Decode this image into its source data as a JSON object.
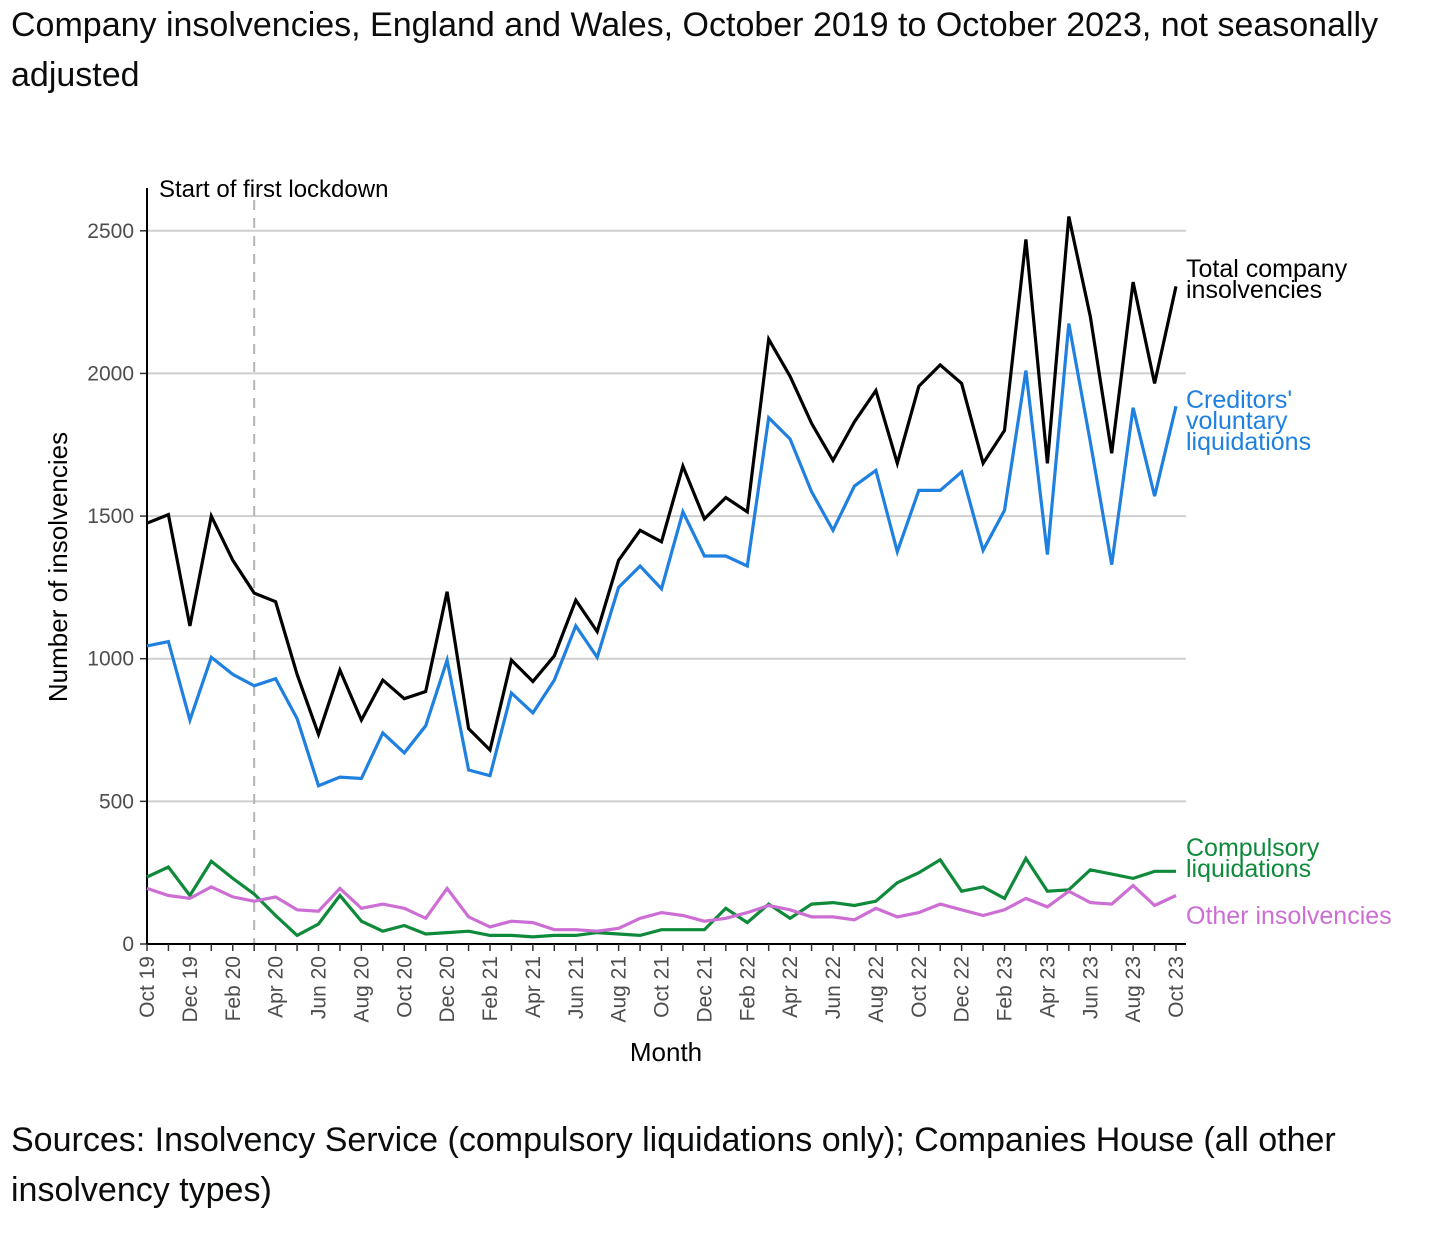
{
  "chart_data": {
    "type": "line",
    "title": "Company insolvencies, England and Wales, October 2019 to October 2023, not seasonally adjusted",
    "xlabel": "Month",
    "ylabel": "Number of insolvencies",
    "ylim": [
      0,
      2650
    ],
    "yticks": [
      0,
      500,
      1000,
      1500,
      2000,
      2500
    ],
    "grid": "horizontal",
    "legend": "direct labels at right end of lines",
    "x": [
      "Oct 19",
      "Nov 19",
      "Dec 19",
      "Jan 20",
      "Feb 20",
      "Mar 20",
      "Apr 20",
      "May 20",
      "Jun 20",
      "Jul 20",
      "Aug 20",
      "Sep 20",
      "Oct 20",
      "Nov 20",
      "Dec 20",
      "Jan 21",
      "Feb 21",
      "Mar 21",
      "Apr 21",
      "May 21",
      "Jun 21",
      "Jul 21",
      "Aug 21",
      "Sep 21",
      "Oct 21",
      "Nov 21",
      "Dec 21",
      "Jan 22",
      "Feb 22",
      "Mar 22",
      "Apr 22",
      "May 22",
      "Jun 22",
      "Jul 22",
      "Aug 22",
      "Sep 22",
      "Oct 22",
      "Nov 22",
      "Dec 22",
      "Jan 23",
      "Feb 23",
      "Mar 23",
      "Apr 23",
      "May 23",
      "Jun 23",
      "Jul 23",
      "Aug 23",
      "Sep 23",
      "Oct 23"
    ],
    "tick_labels": [
      "Oct 19",
      "Dec 19",
      "Feb 20",
      "Apr 20",
      "Jun 20",
      "Aug 20",
      "Oct 20",
      "Dec 20",
      "Feb 21",
      "Apr 21",
      "Jun 21",
      "Aug 21",
      "Oct 21",
      "Dec 21",
      "Feb 22",
      "Apr 22",
      "Jun 22",
      "Aug 22",
      "Oct 22",
      "Dec 22",
      "Feb 23",
      "Apr 23",
      "Jun 23",
      "Aug 23",
      "Oct 23"
    ],
    "series": [
      {
        "name": "Total company insolvencies",
        "label_lines": [
          "Total company",
          "insolvencies"
        ],
        "color": "#000000",
        "values": [
          1475,
          1505,
          1115,
          1500,
          1345,
          1230,
          1200,
          945,
          735,
          960,
          785,
          925,
          860,
          885,
          1235,
          755,
          680,
          995,
          920,
          1010,
          1205,
          1095,
          1345,
          1450,
          1410,
          1675,
          1490,
          1565,
          1515,
          2120,
          1990,
          1825,
          1695,
          1830,
          1940,
          1685,
          1955,
          2030,
          1965,
          1685,
          1800,
          2470,
          1685,
          2550,
          2200,
          1720,
          2320,
          1965,
          2305
        ]
      },
      {
        "name": "Creditors' voluntary liquidations",
        "label_lines": [
          "Creditors'",
          "voluntary",
          "liquidations"
        ],
        "color": "#1f80e0",
        "values": [
          1045,
          1060,
          785,
          1005,
          945,
          905,
          930,
          790,
          555,
          585,
          580,
          740,
          670,
          765,
          995,
          610,
          590,
          880,
          810,
          925,
          1115,
          1005,
          1250,
          1325,
          1245,
          1515,
          1360,
          1360,
          1325,
          1845,
          1770,
          1585,
          1450,
          1605,
          1660,
          1375,
          1590,
          1590,
          1655,
          1380,
          1520,
          2010,
          1365,
          2175,
          1760,
          1330,
          1880,
          1570,
          1885
        ]
      },
      {
        "name": "Compulsory liquidations",
        "label_lines": [
          "Compulsory",
          "liquidations"
        ],
        "color": "#0f8a3b",
        "values": [
          235,
          270,
          170,
          290,
          230,
          175,
          100,
          30,
          70,
          170,
          80,
          45,
          65,
          35,
          40,
          45,
          30,
          30,
          25,
          30,
          30,
          40,
          35,
          30,
          50,
          50,
          50,
          125,
          75,
          140,
          90,
          140,
          145,
          135,
          150,
          215,
          250,
          295,
          185,
          200,
          160,
          300,
          185,
          190,
          260,
          245,
          230,
          255,
          255
        ]
      },
      {
        "name": "Other insolvencies",
        "label_lines": [
          "Other insolvencies"
        ],
        "color": "#cc6ed4",
        "values": [
          195,
          170,
          160,
          200,
          165,
          150,
          165,
          120,
          115,
          195,
          125,
          140,
          125,
          90,
          195,
          95,
          60,
          80,
          75,
          50,
          50,
          45,
          55,
          90,
          110,
          100,
          80,
          90,
          110,
          135,
          120,
          95,
          95,
          85,
          125,
          95,
          110,
          140,
          120,
          100,
          120,
          160,
          130,
          185,
          145,
          140,
          205,
          135,
          170
        ]
      }
    ],
    "annotations": [
      {
        "text": "Start of first lockdown",
        "x": "Mar 20",
        "style": "dashed vertical line"
      }
    ]
  },
  "source_note": "Sources: Insolvency Service (compulsory liquidations only); Companies House (all other insolvency types)"
}
